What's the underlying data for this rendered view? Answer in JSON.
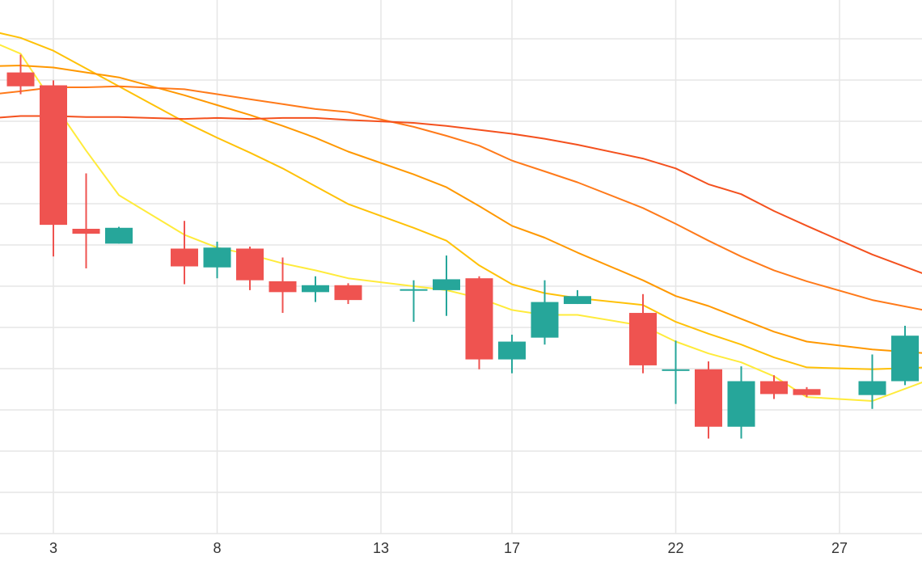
{
  "chart_data": {
    "type": "candlestick",
    "x_ticks": [
      3,
      8,
      13,
      17,
      22,
      27
    ],
    "grid": true,
    "y_labels_visible": false,
    "colors": {
      "up": "#26a69a",
      "down": "#ef5350",
      "ma": [
        "#ffeb3b",
        "#ffc107",
        "#ff9800",
        "#ff7a1a",
        "#f4511e"
      ],
      "grid": "#e6e6e6"
    },
    "candles": [
      {
        "day": 2,
        "open": 76.6,
        "high": 78.4,
        "low": 74.4,
        "close": 75.2
      },
      {
        "day": 3,
        "open": 75.3,
        "high": 75.8,
        "low": 58.0,
        "close": 61.2
      },
      {
        "day": 4,
        "open": 60.8,
        "high": 66.4,
        "low": 56.8,
        "close": 60.3
      },
      {
        "day": 5,
        "open": 59.3,
        "high": 61.0,
        "low": 59.3,
        "close": 60.9
      },
      {
        "day": 7,
        "open": 58.8,
        "high": 61.6,
        "low": 55.2,
        "close": 57.0
      },
      {
        "day": 8,
        "open": 56.9,
        "high": 59.5,
        "low": 55.8,
        "close": 58.9
      },
      {
        "day": 9,
        "open": 58.8,
        "high": 59.0,
        "low": 54.6,
        "close": 55.6
      },
      {
        "day": 10,
        "open": 55.5,
        "high": 57.9,
        "low": 52.3,
        "close": 54.4
      },
      {
        "day": 11,
        "open": 54.4,
        "high": 56.0,
        "low": 53.4,
        "close": 55.1
      },
      {
        "day": 12,
        "open": 55.1,
        "high": 55.3,
        "low": 53.2,
        "close": 53.6
      },
      {
        "day": 14,
        "open": 54.7,
        "high": 55.6,
        "low": 51.4,
        "close": 54.7
      },
      {
        "day": 15,
        "open": 54.6,
        "high": 58.1,
        "low": 52.0,
        "close": 55.7
      },
      {
        "day": 16,
        "open": 55.8,
        "high": 56.0,
        "low": 46.6,
        "close": 47.6
      },
      {
        "day": 17,
        "open": 47.6,
        "high": 50.1,
        "low": 46.2,
        "close": 49.4
      },
      {
        "day": 18,
        "open": 49.8,
        "high": 55.6,
        "low": 49.1,
        "close": 53.4
      },
      {
        "day": 19,
        "open": 53.2,
        "high": 54.6,
        "low": 53.2,
        "close": 54.0
      },
      {
        "day": 21,
        "open": 52.3,
        "high": 54.2,
        "low": 46.2,
        "close": 47.0
      },
      {
        "day": 22,
        "open": 46.6,
        "high": 49.5,
        "low": 43.1,
        "close": 46.6
      },
      {
        "day": 23,
        "open": 46.6,
        "high": 47.4,
        "low": 39.6,
        "close": 40.8
      },
      {
        "day": 24,
        "open": 40.8,
        "high": 46.9,
        "low": 39.6,
        "close": 45.4
      },
      {
        "day": 25,
        "open": 45.4,
        "high": 46.0,
        "low": 43.6,
        "close": 44.1
      },
      {
        "day": 26,
        "open": 44.6,
        "high": 44.8,
        "low": 43.8,
        "close": 44.0
      },
      {
        "day": 28,
        "open": 44.0,
        "high": 48.1,
        "low": 42.6,
        "close": 45.4
      },
      {
        "day": 29,
        "open": 45.4,
        "high": 51.0,
        "low": 45.0,
        "close": 50.0
      }
    ],
    "moving_averages": [
      {
        "x": [
          -0.5,
          2,
          3,
          4,
          5,
          7,
          8,
          9,
          10,
          11,
          12,
          14,
          15,
          16,
          17,
          18,
          19,
          21,
          22,
          23,
          24,
          25,
          26,
          28,
          29.7
        ],
        "y": [
          82.0,
          78.5,
          73.5,
          68.7,
          64.2,
          60.2,
          58.9,
          58.2,
          57.3,
          56.6,
          55.8,
          55.0,
          54.6,
          53.8,
          52.6,
          52.1,
          52.1,
          51.0,
          49.4,
          48.2,
          47.3,
          45.9,
          43.8,
          43.4,
          45.5
        ]
      },
      {
        "x": [
          -0.5,
          2,
          3,
          4,
          5,
          7,
          8,
          9,
          10,
          11,
          12,
          14,
          15,
          16,
          17,
          18,
          19,
          21,
          22,
          23,
          24,
          25,
          26,
          28,
          29.7
        ],
        "y": [
          82.0,
          80.1,
          78.8,
          77.0,
          75.2,
          71.6,
          70.0,
          68.5,
          66.9,
          65.1,
          63.3,
          60.9,
          59.6,
          57.1,
          55.2,
          54.3,
          53.8,
          53.1,
          51.4,
          50.2,
          49.1,
          47.8,
          46.8,
          46.6,
          46.8
        ]
      },
      {
        "x": [
          -0.5,
          2,
          3,
          4,
          5,
          7,
          8,
          9,
          10,
          11,
          12,
          14,
          15,
          16,
          17,
          18,
          19,
          21,
          22,
          23,
          24,
          25,
          26,
          28,
          29.7
        ],
        "y": [
          77.1,
          77.3,
          77.1,
          76.6,
          76.1,
          74.3,
          73.3,
          72.3,
          71.2,
          70.0,
          68.6,
          66.3,
          65.0,
          63.1,
          61.1,
          59.9,
          58.4,
          55.6,
          54.0,
          53.0,
          51.7,
          50.4,
          49.4,
          48.6,
          48.2
        ]
      },
      {
        "x": [
          -0.5,
          2,
          3,
          4,
          5,
          7,
          8,
          9,
          10,
          11,
          12,
          14,
          15,
          16,
          17,
          18,
          19,
          21,
          22,
          23,
          24,
          25,
          26,
          28,
          29.7
        ],
        "y": [
          73.8,
          74.7,
          75.1,
          75.1,
          75.2,
          74.9,
          74.4,
          73.9,
          73.4,
          72.9,
          72.6,
          71.1,
          70.2,
          69.2,
          67.7,
          66.6,
          65.5,
          62.9,
          61.3,
          59.6,
          58.0,
          56.6,
          55.5,
          53.6,
          52.5
        ]
      },
      {
        "x": [
          -0.5,
          2,
          3,
          4,
          5,
          7,
          8,
          9,
          10,
          11,
          12,
          14,
          15,
          16,
          17,
          18,
          19,
          21,
          22,
          23,
          24,
          25,
          26,
          28,
          29.7
        ],
        "y": [
          71.6,
          72.2,
          72.2,
          72.1,
          72.1,
          71.9,
          72.0,
          71.9,
          72.0,
          72.0,
          71.8,
          71.5,
          71.2,
          70.8,
          70.4,
          69.9,
          69.3,
          67.9,
          66.9,
          65.3,
          64.3,
          62.6,
          61.1,
          58.2,
          56.1
        ]
      }
    ]
  }
}
